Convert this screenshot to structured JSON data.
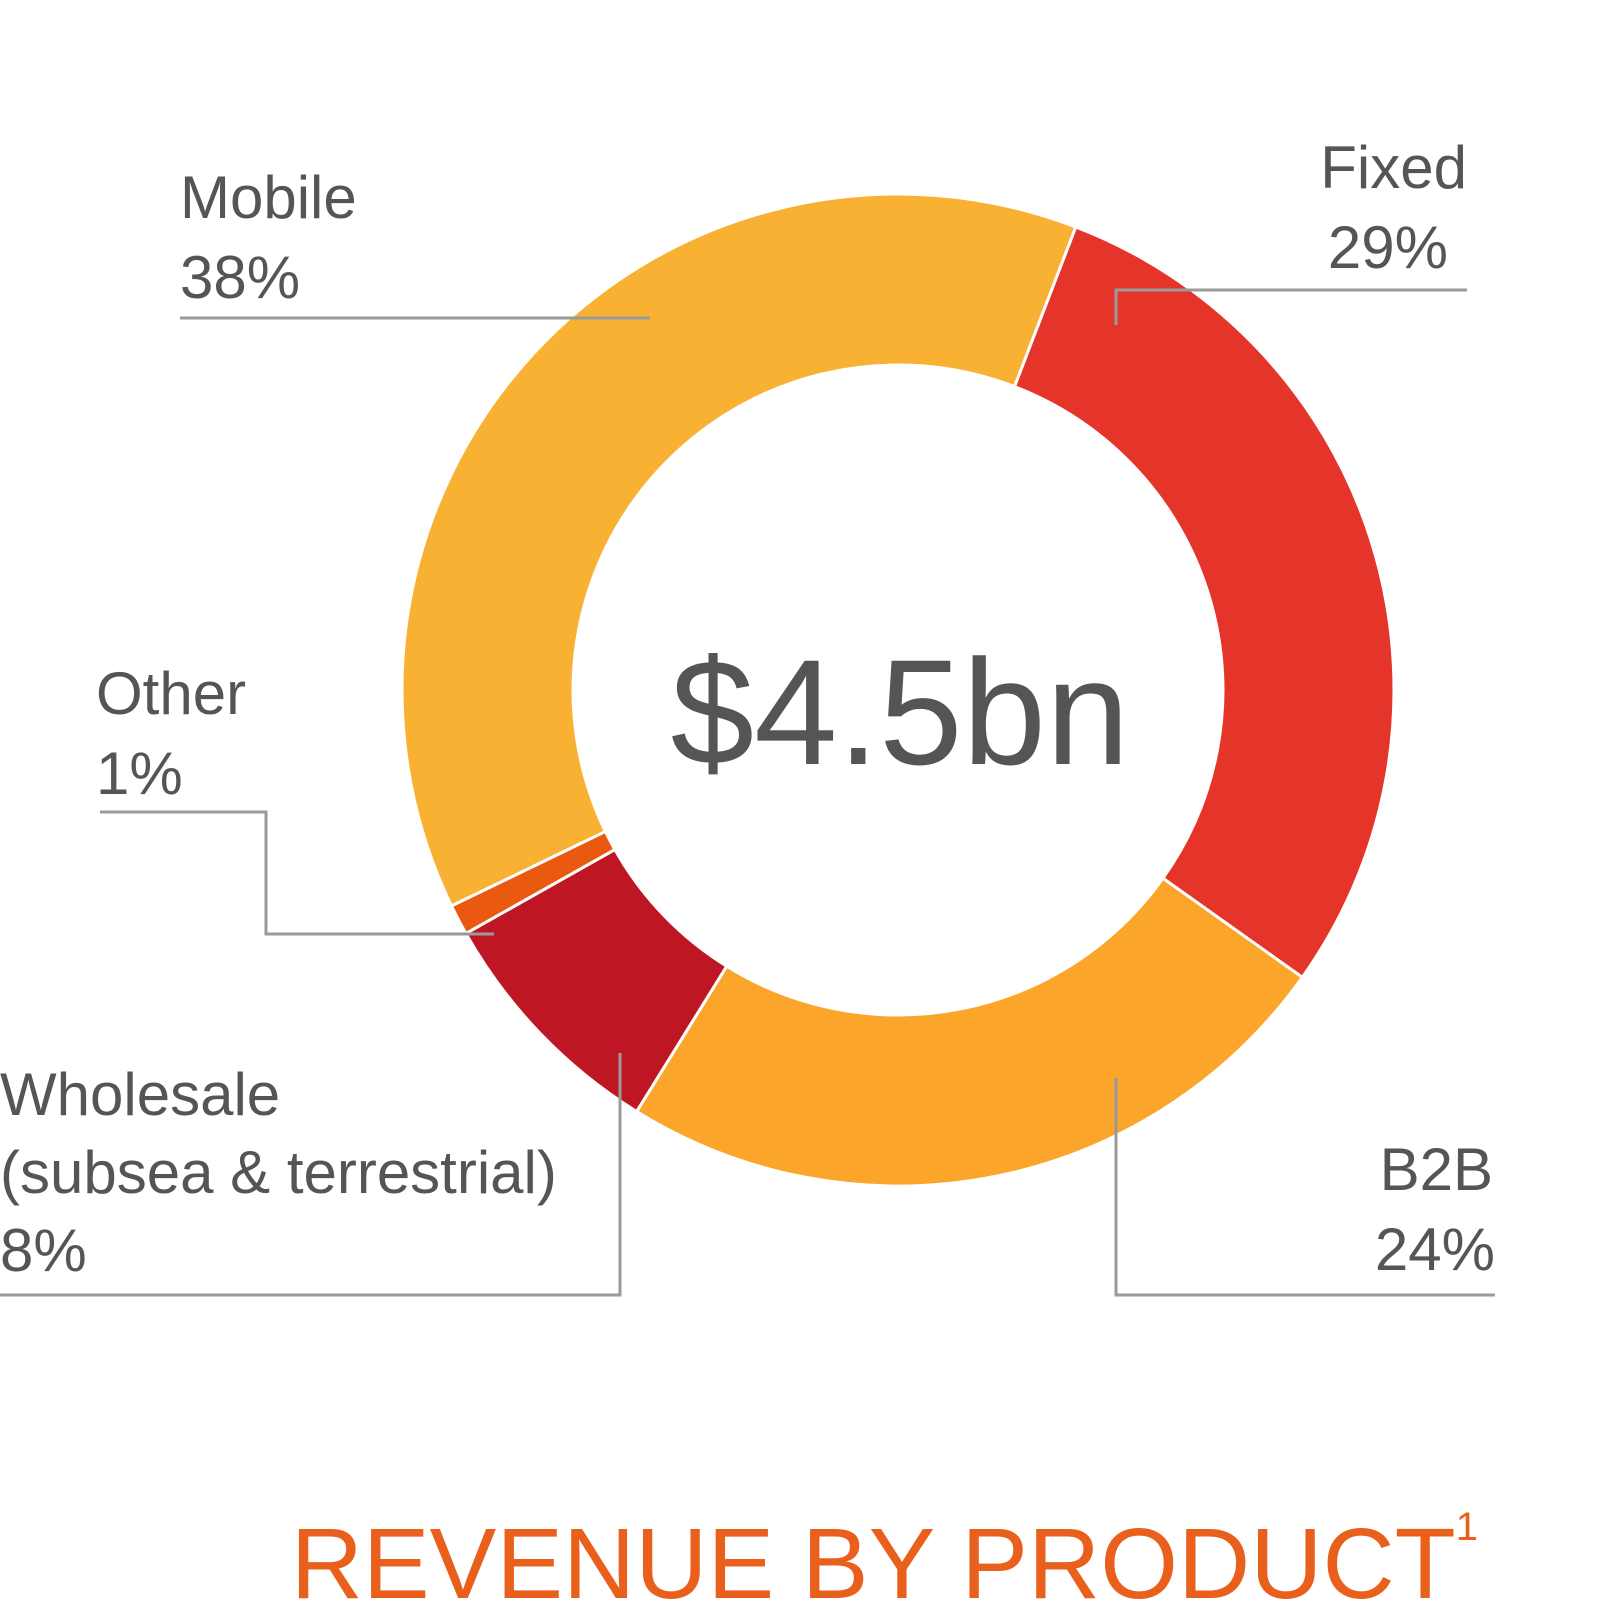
{
  "chart_data": {
    "type": "pie",
    "donut": true,
    "center_label": "$4.5bn",
    "title": "REVENUE BY PRODUCT",
    "title_superscript": "1",
    "slices": [
      {
        "label": "Fixed",
        "value": 29,
        "display": "29%",
        "color": "#E5352B"
      },
      {
        "label": "B2B",
        "value": 24,
        "display": "24%",
        "color": "#FBA52A"
      },
      {
        "label": "Wholesale (subsea & terrestrial)",
        "label_lines": [
          "Wholesale",
          "(subsea & terrestrial)"
        ],
        "value": 8,
        "display": "8%",
        "color": "#BE1622"
      },
      {
        "label": "Other",
        "value": 1,
        "display": "1%",
        "color": "#E9590F"
      },
      {
        "label": "Mobile",
        "value": 38,
        "display": "38%",
        "color": "#F8B133"
      }
    ]
  }
}
